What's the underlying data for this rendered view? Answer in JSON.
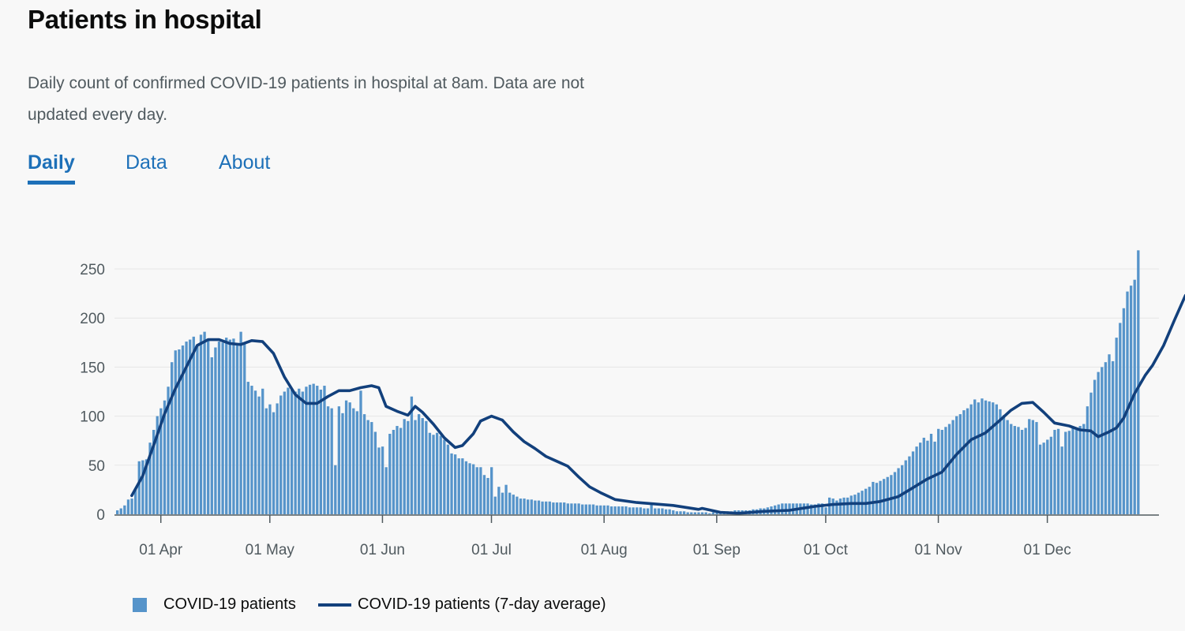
{
  "page": {
    "title": "Patients in hospital",
    "description": "Daily count of confirmed COVID-19 patients in hospital at 8am. Data are not updated every day."
  },
  "tabs": [
    {
      "label": "Daily",
      "active": true
    },
    {
      "label": "Data",
      "active": false
    },
    {
      "label": "About",
      "active": false
    }
  ],
  "colors": {
    "bar": "#5694ca",
    "line": "#12407c",
    "grid": "#e6e6e6",
    "axis": "#505a5f",
    "accent": "#1d70b8"
  },
  "chart_data": {
    "type": "bar",
    "x_start": "2020-03-20",
    "x_end": "2020-12-31",
    "ylim": [
      0,
      250
    ],
    "yticks": [
      0,
      50,
      100,
      150,
      200,
      250
    ],
    "xticks": [
      {
        "date": "2020-04-01",
        "label": "01 Apr"
      },
      {
        "date": "2020-05-01",
        "label": "01 May"
      },
      {
        "date": "2020-06-01",
        "label": "01 Jun"
      },
      {
        "date": "2020-07-01",
        "label": "01 Jul"
      },
      {
        "date": "2020-08-01",
        "label": "01 Aug"
      },
      {
        "date": "2020-09-01",
        "label": "01 Sep"
      },
      {
        "date": "2020-10-01",
        "label": "01 Oct"
      },
      {
        "date": "2020-11-01",
        "label": "01 Nov"
      },
      {
        "date": "2020-12-01",
        "label": "01 Dec"
      }
    ],
    "grid": true,
    "legend": "bottom-left",
    "series": [
      {
        "name": "COVID-19 patients",
        "type": "bar",
        "values": [
          4,
          6,
          9,
          15,
          16,
          26,
          54,
          55,
          56,
          73,
          86,
          100,
          108,
          116,
          130,
          155,
          167,
          168,
          172,
          176,
          178,
          181,
          172,
          183,
          186,
          178,
          160,
          170,
          176,
          175,
          180,
          178,
          179,
          172,
          186,
          175,
          135,
          131,
          126,
          120,
          128,
          108,
          112,
          104,
          113,
          121,
          125,
          129,
          127,
          125,
          128,
          125,
          130,
          132,
          133,
          131,
          127,
          131,
          110,
          108,
          50,
          110,
          103,
          116,
          114,
          108,
          105,
          126,
          102,
          96,
          94,
          84,
          68,
          69,
          48,
          82,
          86,
          90,
          88,
          97,
          95,
          120,
          96,
          102,
          98,
          95,
          83,
          81,
          83,
          80,
          76,
          71,
          62,
          61,
          57,
          57,
          54,
          52,
          51,
          48,
          48,
          40,
          37,
          48,
          18,
          28,
          22,
          30,
          22,
          20,
          18,
          16,
          16,
          15,
          15,
          14,
          14,
          13,
          13,
          13,
          12,
          12,
          12,
          12,
          11,
          11,
          11,
          11,
          10,
          10,
          10,
          10,
          9,
          9,
          9,
          9,
          8,
          8,
          8,
          8,
          8,
          7,
          7,
          7,
          7,
          6,
          6,
          12,
          6,
          6,
          6,
          5,
          5,
          4,
          3,
          3,
          3,
          2,
          2,
          2,
          2,
          2,
          2,
          1,
          2,
          2,
          3,
          3,
          3,
          3,
          4,
          4,
          4,
          4,
          4,
          5,
          5,
          6,
          6,
          7,
          8,
          9,
          10,
          11,
          11,
          11,
          11,
          11,
          11,
          11,
          11,
          10,
          10,
          11,
          11,
          7,
          17,
          16,
          14,
          16,
          17,
          17,
          19,
          20,
          22,
          24,
          26,
          28,
          33,
          32,
          34,
          36,
          38,
          40,
          43,
          47,
          50,
          55,
          59,
          64,
          69,
          73,
          78,
          75,
          82,
          74,
          87,
          86,
          89,
          92,
          96,
          100,
          102,
          106,
          108,
          112,
          117,
          114,
          118,
          116,
          115,
          114,
          112,
          107,
          101,
          96,
          92,
          90,
          89,
          86,
          88,
          97,
          96,
          94,
          71,
          73,
          76,
          79,
          86,
          87,
          69,
          84,
          85,
          88,
          86,
          90,
          92,
          110,
          124,
          137,
          145,
          150,
          155,
          163,
          156,
          180,
          195,
          210,
          227,
          233,
          239,
          269
        ]
      },
      {
        "name": "COVID-19 patients (7-day average)",
        "type": "line",
        "points": [
          [
            "2020-03-24",
            19
          ],
          [
            "2020-03-27",
            39
          ],
          [
            "2020-03-30",
            70
          ],
          [
            "2020-04-02",
            102
          ],
          [
            "2020-04-05",
            128
          ],
          [
            "2020-04-08",
            150
          ],
          [
            "2020-04-11",
            172
          ],
          [
            "2020-04-14",
            178
          ],
          [
            "2020-04-17",
            178
          ],
          [
            "2020-04-20",
            174
          ],
          [
            "2020-04-23",
            173
          ],
          [
            "2020-04-26",
            177
          ],
          [
            "2020-04-29",
            176
          ],
          [
            "2020-05-02",
            164
          ],
          [
            "2020-05-05",
            140
          ],
          [
            "2020-05-08",
            122
          ],
          [
            "2020-05-11",
            113
          ],
          [
            "2020-05-14",
            113
          ],
          [
            "2020-05-17",
            120
          ],
          [
            "2020-05-20",
            126
          ],
          [
            "2020-05-23",
            126
          ],
          [
            "2020-05-26",
            129
          ],
          [
            "2020-05-29",
            131
          ],
          [
            "2020-05-31",
            129
          ],
          [
            "2020-06-02",
            110
          ],
          [
            "2020-06-05",
            105
          ],
          [
            "2020-06-08",
            101
          ],
          [
            "2020-06-10",
            110
          ],
          [
            "2020-06-12",
            104
          ],
          [
            "2020-06-15",
            92
          ],
          [
            "2020-06-18",
            78
          ],
          [
            "2020-06-21",
            68
          ],
          [
            "2020-06-23",
            70
          ],
          [
            "2020-06-26",
            82
          ],
          [
            "2020-06-28",
            95
          ],
          [
            "2020-07-01",
            100
          ],
          [
            "2020-07-04",
            96
          ],
          [
            "2020-07-07",
            84
          ],
          [
            "2020-07-10",
            74
          ],
          [
            "2020-07-13",
            67
          ],
          [
            "2020-07-16",
            59
          ],
          [
            "2020-07-19",
            54
          ],
          [
            "2020-07-22",
            49
          ],
          [
            "2020-07-25",
            38
          ],
          [
            "2020-07-28",
            28
          ],
          [
            "2020-07-31",
            22
          ],
          [
            "2020-08-04",
            15
          ],
          [
            "2020-08-10",
            12
          ],
          [
            "2020-08-20",
            9
          ],
          [
            "2020-08-27",
            5
          ],
          [
            "2020-08-28",
            6
          ],
          [
            "2020-09-02",
            2
          ],
          [
            "2020-09-07",
            1
          ],
          [
            "2020-09-14",
            3
          ],
          [
            "2020-09-21",
            4
          ],
          [
            "2020-09-28",
            8
          ],
          [
            "2020-10-03",
            10
          ],
          [
            "2020-10-08",
            11
          ],
          [
            "2020-10-12",
            11
          ],
          [
            "2020-10-16",
            13
          ],
          [
            "2020-10-21",
            18
          ],
          [
            "2020-10-25",
            27
          ],
          [
            "2020-10-29",
            36
          ],
          [
            "2020-11-02",
            43
          ],
          [
            "2020-11-06",
            61
          ],
          [
            "2020-11-10",
            76
          ],
          [
            "2020-11-14",
            83
          ],
          [
            "2020-11-18",
            96
          ],
          [
            "2020-11-21",
            106
          ],
          [
            "2020-11-24",
            113
          ],
          [
            "2020-11-27",
            114
          ],
          [
            "2020-11-30",
            104
          ],
          [
            "2020-12-03",
            93
          ],
          [
            "2020-12-07",
            90
          ],
          [
            "2020-12-10",
            86
          ],
          [
            "2020-12-13",
            85
          ],
          [
            "2020-12-15",
            79
          ],
          [
            "2020-12-18",
            84
          ],
          [
            "2020-12-20",
            88
          ],
          [
            "2020-12-22",
            98
          ],
          [
            "2020-12-25",
            123
          ],
          [
            "2020-12-28",
            142
          ],
          [
            "2020-12-30",
            152
          ],
          [
            "2021-01-02",
            172
          ],
          [
            "2021-01-05",
            198
          ],
          [
            "2021-01-08",
            223
          ]
        ]
      }
    ]
  },
  "legend_items": [
    {
      "label": "COVID-19 patients",
      "kind": "bar"
    },
    {
      "label": "COVID-19 patients (7-day average)",
      "kind": "line"
    }
  ]
}
